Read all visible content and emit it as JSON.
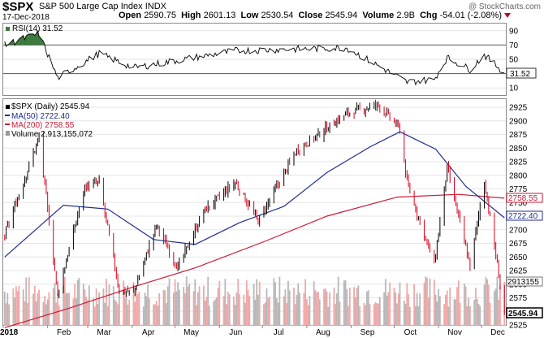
{
  "header": {
    "symbol": "$SPX",
    "name": "S&P 500 Large Cap Index",
    "exchange": "INDX",
    "date": "17-Dec-2018",
    "watermark": "@ StockCharts.com",
    "open_label": "Open",
    "open": "2590.75",
    "high_label": "High",
    "high": "2601.13",
    "low_label": "Low",
    "low": "2530.54",
    "close_label": "Close",
    "close": "2545.94",
    "volume_label": "Volume",
    "volume": "2.9B",
    "chg_label": "Chg",
    "chg": "-54.01 (-2.08%)"
  },
  "rsi_panel": {
    "legend": "RSI(14) 31.52",
    "current_tag": "31.52",
    "ticks": [
      "90",
      "70",
      "50",
      "30",
      "10"
    ]
  },
  "price_panel": {
    "legend_price": "$SPX (Daily) 2545.94",
    "legend_ma50": "MA(50) 2722.40",
    "legend_ma200": "MA(200) 2758.55",
    "legend_volume": "Volume 2,913,155,072",
    "tag_ma200": "2758.55",
    "tag_ma50": "2722.40",
    "tag_volume": "2913155",
    "tag_close": "2545.94",
    "y_ticks": [
      "2925",
      "2900",
      "2875",
      "2850",
      "2825",
      "2800",
      "2775",
      "2750",
      "2725",
      "2700",
      "2675",
      "2650",
      "2625",
      "2600",
      "2575",
      "2550",
      "2525"
    ]
  },
  "x_axis": {
    "labels": [
      "2018",
      "Feb",
      "Mar",
      "Apr",
      "May",
      "Jun",
      "Jul",
      "Aug",
      "Sep",
      "Oct",
      "Nov",
      "Dec"
    ]
  },
  "colors": {
    "up": "#000000",
    "down": "#d4001a",
    "ma50": "#1f2d8f",
    "ma200": "#cc1a33",
    "rsi_fill": "#3d7a3d",
    "volume": "#b8b8b8",
    "volume_down": "#f0a8a8"
  },
  "chart_data": {
    "type": "line",
    "title": "$SPX S&P 500 Large Cap Index INDX",
    "series": [
      {
        "name": "$SPX (Daily)",
        "x": [
          "2018-01-02",
          "2018-01-26",
          "2018-02-08",
          "2018-02-27",
          "2018-03-09",
          "2018-03-23",
          "2018-04-02",
          "2018-04-18",
          "2018-05-03",
          "2018-05-21",
          "2018-06-12",
          "2018-06-28",
          "2018-07-25",
          "2018-08-29",
          "2018-09-20",
          "2018-10-05",
          "2018-10-10",
          "2018-10-29",
          "2018-11-07",
          "2018-11-23",
          "2018-12-03",
          "2018-12-14",
          "2018-12-17"
        ],
        "values": [
          2690,
          2870,
          2581,
          2779,
          2787,
          2588,
          2585,
          2708,
          2630,
          2734,
          2787,
          2716,
          2846,
          2914,
          2930,
          2885,
          2786,
          2636,
          2813,
          2633,
          2790,
          2600,
          2546
        ]
      },
      {
        "name": "MA(50)",
        "x": [
          "2018-01-02",
          "2018-02-12",
          "2018-03-15",
          "2018-04-16",
          "2018-05-15",
          "2018-06-15",
          "2018-07-16",
          "2018-08-15",
          "2018-09-14",
          "2018-10-05",
          "2018-10-30",
          "2018-11-20",
          "2018-12-17"
        ],
        "values": [
          2650,
          2745,
          2738,
          2682,
          2673,
          2713,
          2743,
          2805,
          2852,
          2880,
          2848,
          2780,
          2722
        ]
      },
      {
        "name": "MA(200)",
        "x": [
          "2018-01-02",
          "2018-02-15",
          "2018-04-02",
          "2018-05-15",
          "2018-07-02",
          "2018-08-15",
          "2018-10-03",
          "2018-11-15",
          "2018-12-17"
        ],
        "values": [
          2520,
          2555,
          2595,
          2630,
          2678,
          2725,
          2760,
          2765,
          2758
        ]
      },
      {
        "name": "RSI(14)",
        "x": [
          "2018-01-02",
          "2018-01-26",
          "2018-02-08",
          "2018-03-09",
          "2018-04-02",
          "2018-06-12",
          "2018-08-29",
          "2018-10-10",
          "2018-10-29",
          "2018-11-07",
          "2018-11-23",
          "2018-12-03",
          "2018-12-17"
        ],
        "values": [
          70,
          86,
          24,
          58,
          38,
          62,
          66,
          18,
          22,
          52,
          36,
          56,
          31.52
        ]
      }
    ],
    "ylim": [
      2525,
      2940
    ],
    "rsi_ylim": [
      0,
      100
    ],
    "grid": true,
    "legend": "top-left"
  }
}
